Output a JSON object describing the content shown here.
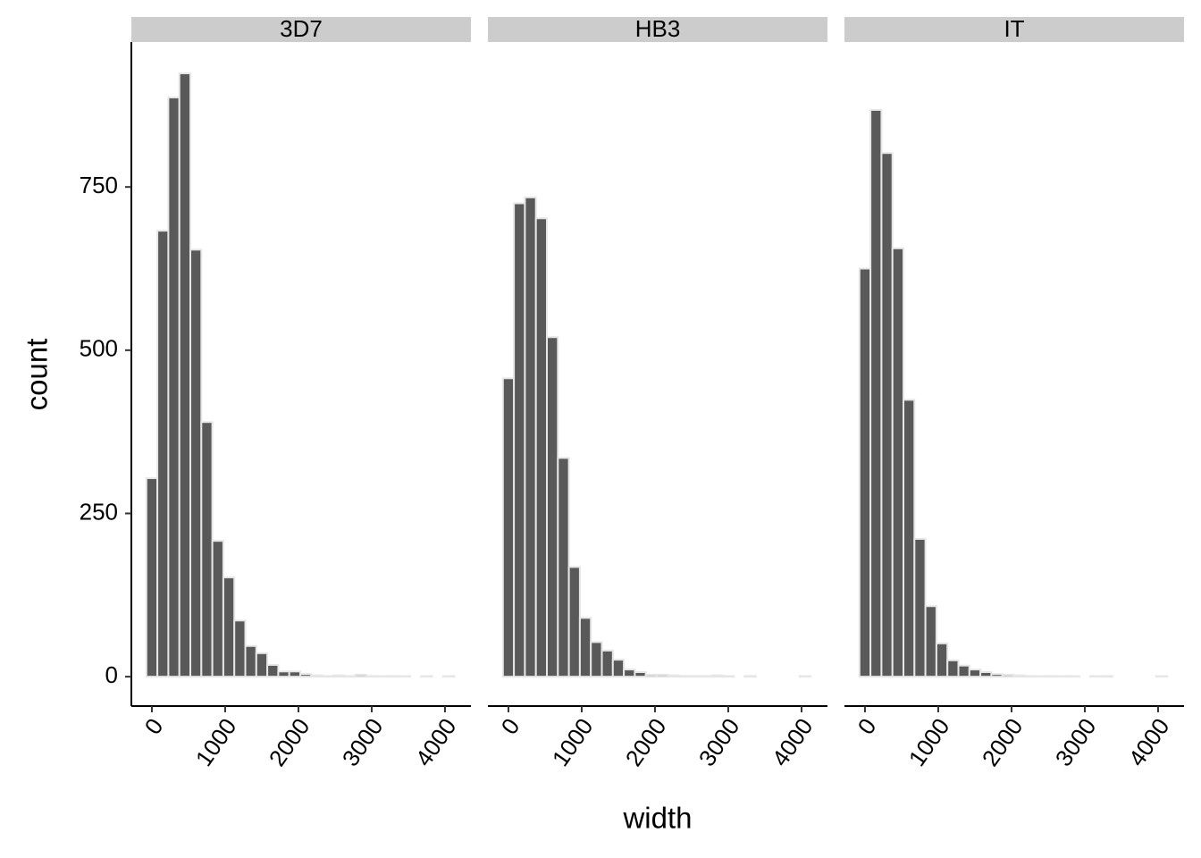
{
  "chart_data": {
    "type": "histogram",
    "x_label": "width",
    "y_label": "count",
    "bins": [
      -75,
      75,
      225,
      375,
      525,
      675,
      825,
      975,
      1125,
      1275,
      1425,
      1575,
      1725,
      1875,
      2025,
      2175,
      2325,
      2475,
      2625,
      2775,
      2925,
      3075,
      3225,
      3375,
      3525,
      3675,
      3825,
      3975,
      4125
    ],
    "xlim": [
      -280,
      4354
    ],
    "xticks": [
      0,
      1000,
      2000,
      3000,
      4000
    ],
    "ylim": [
      -45,
      972
    ],
    "yticks": [
      0,
      250,
      500,
      750
    ],
    "color": "#595959",
    "edge_color": "#e6e6e6",
    "facets": [
      {
        "title": "3D7",
        "values": [
          304,
          683,
          887,
          924,
          654,
          390,
          208,
          152,
          86,
          47,
          36,
          18,
          8,
          8,
          4,
          2,
          1,
          2,
          1,
          3,
          1,
          1,
          1,
          1,
          0,
          1,
          0,
          1
        ]
      },
      {
        "title": "HB3",
        "values": [
          457,
          725,
          734,
          702,
          520,
          335,
          168,
          90,
          53,
          40,
          26,
          11,
          7,
          3,
          3,
          2,
          1,
          1,
          1,
          2,
          1,
          0,
          1,
          0,
          0,
          0,
          0,
          1
        ]
      },
      {
        "title": "IT",
        "values": [
          625,
          868,
          802,
          656,
          424,
          211,
          108,
          51,
          25,
          17,
          11,
          7,
          4,
          3,
          2,
          1,
          1,
          1,
          1,
          1,
          0,
          1,
          1,
          0,
          0,
          0,
          0,
          1
        ]
      }
    ]
  }
}
